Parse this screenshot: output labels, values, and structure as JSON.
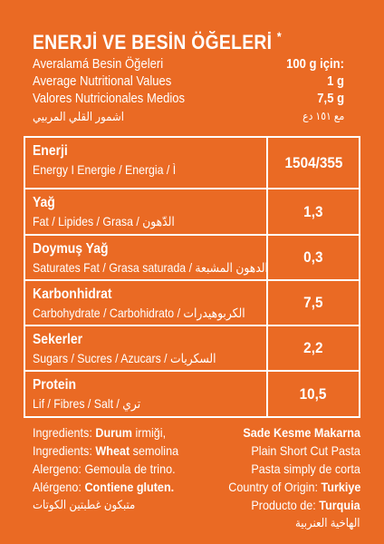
{
  "title": {
    "text": "ENERJİ VE BESİN ÖĞELERİ",
    "mark": "*"
  },
  "info": [
    {
      "left": "Averalamá Besin Öğeleri",
      "right": "100 g için:"
    },
    {
      "left": "Average Nutritional Values",
      "right": "1 g"
    },
    {
      "left": "Valores Nutricionales Medios",
      "right": "7,5 g"
    },
    {
      "left": "اشمور القلي المربيي",
      "right": "مع ١٥١ دع"
    }
  ],
  "table": [
    {
      "name": "Enerji",
      "sub": "Energy I Energie / Energia / Ì",
      "value": "1504/355"
    },
    {
      "name": "Yağ",
      "sub": "Fat / Lipides / Grasa / الدّهون",
      "value": "1,3"
    },
    {
      "name": "Doymuş Yağ",
      "sub": "Saturates Fat / Grasa saturada / الدهون المشبعة",
      "value": "0,3"
    },
    {
      "name": "Karbonhidrat",
      "sub": "Carbohydrate / Carbohidrato / الكربوهيدرات",
      "value": "7,5"
    },
    {
      "name": "Sekerler",
      "sub": "Sugars / Sucres / Azucars / السكريات",
      "value": "2,2"
    },
    {
      "name": "Protein",
      "sub": "Lif / Fibres / Salt / تري",
      "value": "10,5"
    }
  ],
  "bottom_left": [
    {
      "prefix": "Ingredients: ",
      "bold": "Durum",
      "suffix": " irmiği,"
    },
    {
      "prefix": "Ingredients: ",
      "bold": "Wheat",
      "suffix": " semolina"
    },
    {
      "prefix": "Alergeno: Gemoula de trino.",
      "bold": "",
      "suffix": ""
    },
    {
      "prefix": "Alérgeno: ",
      "bold": "Contiene gluten.",
      "suffix": ""
    },
    {
      "prefix": "متبكون غطبتين",
      "bold": "",
      "suffix": "   الكوتات"
    }
  ],
  "bottom_right": [
    {
      "prefix": "",
      "bold": "Sade Kesme Makarna"
    },
    {
      "prefix": "Plain Short Cut Pasta",
      "bold": ""
    },
    {
      "prefix": "Pasta simply de corta",
      "bold": ""
    },
    {
      "prefix": "Country of Origin: ",
      "bold": "Turkiye"
    },
    {
      "prefix": "Producto de: ",
      "bold": "Turquia"
    },
    {
      "prefix": "الهاخية العنربية",
      "bold": ""
    }
  ]
}
